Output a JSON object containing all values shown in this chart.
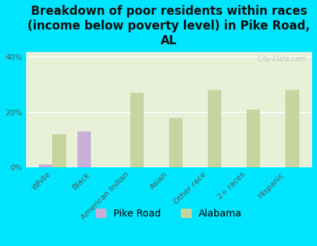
{
  "categories": [
    "White",
    "Black",
    "American Indian",
    "Asian",
    "Other race",
    "2+ races",
    "Hispanic"
  ],
  "pike_road": [
    1.0,
    13.0,
    0,
    0,
    0,
    0,
    0
  ],
  "alabama": [
    12.0,
    0,
    27.0,
    18.0,
    28.0,
    21.0,
    28.0
  ],
  "title": "Breakdown of poor residents within races\n(income below poverty level) in Pike Road,\nAL",
  "pike_road_color": "#c9aed6",
  "alabama_color": "#c8d4a0",
  "background_chart": "#e8f0d8",
  "background_figure": "#00e5ff",
  "ylim": [
    0,
    42
  ],
  "yticks": [
    0,
    20,
    40
  ],
  "ytick_labels": [
    "0%",
    "20%",
    "40%"
  ],
  "grid_color": "#ffffff",
  "bar_width": 0.35,
  "title_fontsize": 12,
  "tick_fontsize": 8,
  "legend_fontsize": 10
}
